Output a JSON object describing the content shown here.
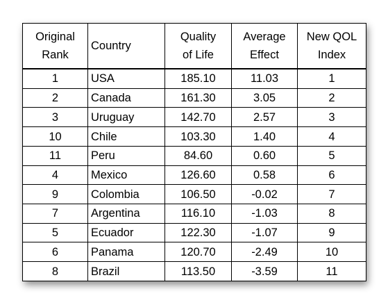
{
  "table": {
    "headers": [
      [
        "Original",
        "Rank"
      ],
      [
        "Country"
      ],
      [
        "Quality",
        "of Life"
      ],
      [
        "Average",
        "Effect"
      ],
      [
        "New QOL",
        "Index"
      ]
    ],
    "rows": [
      [
        "1",
        "USA",
        "185.10",
        "11.03",
        "1"
      ],
      [
        "2",
        "Canada",
        "161.30",
        "3.05",
        "2"
      ],
      [
        "3",
        "Uruguay",
        "142.70",
        "2.57",
        "3"
      ],
      [
        "10",
        "Chile",
        "103.30",
        "1.40",
        "4"
      ],
      [
        "11",
        "Peru",
        "84.60",
        "0.60",
        "5"
      ],
      [
        "4",
        "Mexico",
        "126.60",
        "0.58",
        "6"
      ],
      [
        "9",
        "Colombia",
        "106.50",
        "-0.02",
        "7"
      ],
      [
        "7",
        "Argentina",
        "116.10",
        "-1.03",
        "8"
      ],
      [
        "5",
        "Ecuador",
        "122.30",
        "-1.07",
        "9"
      ],
      [
        "6",
        "Panama",
        "120.70",
        "-2.49",
        "10"
      ],
      [
        "8",
        "Brazil",
        "113.50",
        "-3.59",
        "11"
      ]
    ]
  }
}
